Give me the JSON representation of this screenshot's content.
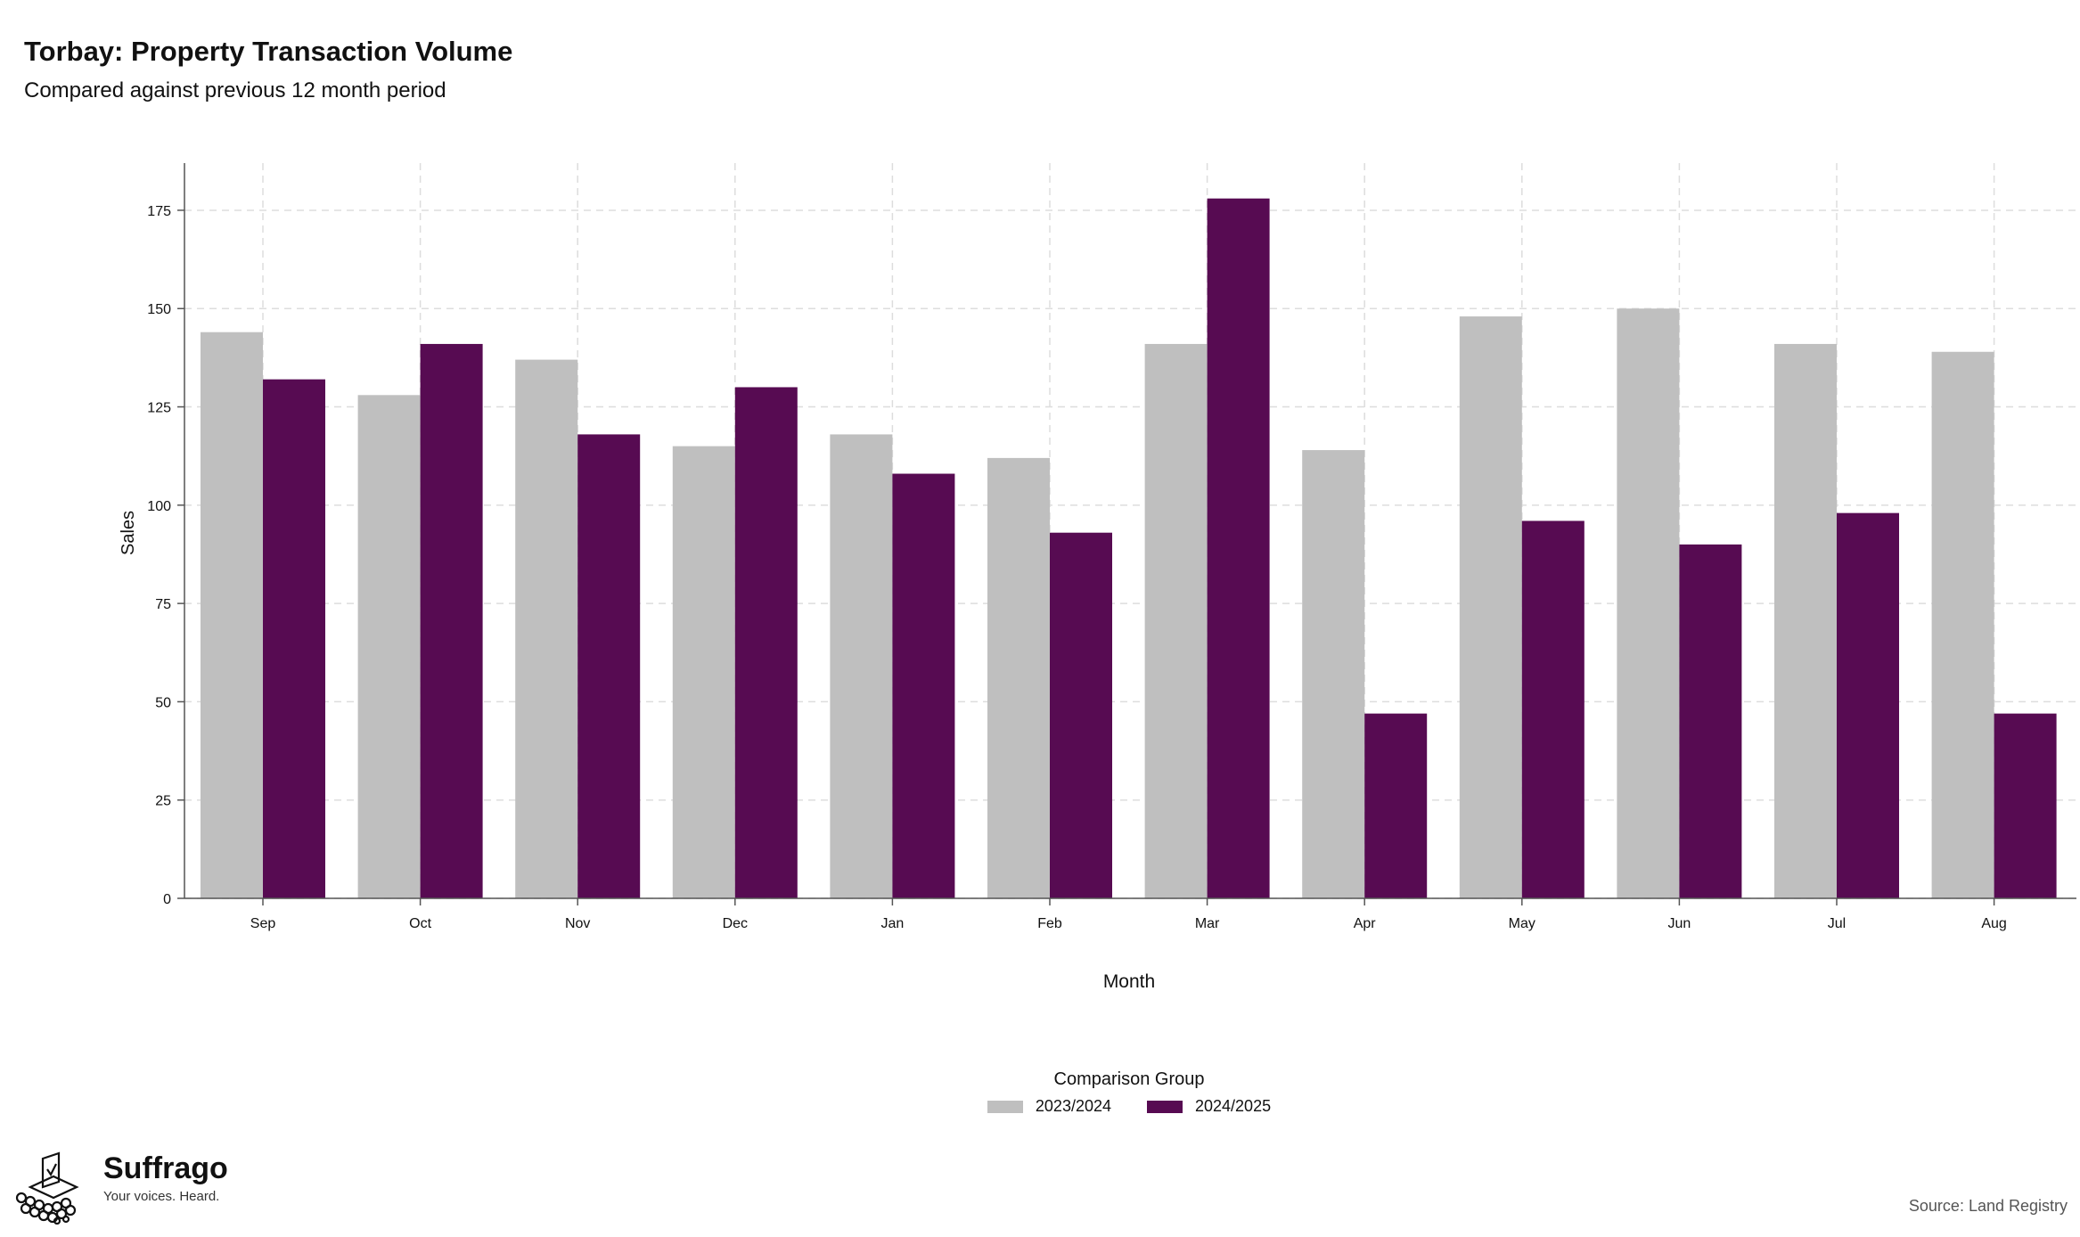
{
  "header": {
    "title": "Torbay: Property Transaction Volume",
    "subtitle": "Compared against previous 12 month period"
  },
  "chart_data": {
    "type": "bar",
    "categories": [
      "Sep",
      "Oct",
      "Nov",
      "Dec",
      "Jan",
      "Feb",
      "Mar",
      "Apr",
      "May",
      "Jun",
      "Jul",
      "Aug"
    ],
    "series": [
      {
        "name": "2023/2024",
        "color": "#bfbfbf",
        "values": [
          144,
          128,
          137,
          115,
          118,
          112,
          141,
          114,
          148,
          150,
          141,
          139
        ]
      },
      {
        "name": "2024/2025",
        "color": "#570b52",
        "values": [
          132,
          141,
          118,
          130,
          108,
          93,
          178,
          47,
          96,
          90,
          98,
          47
        ]
      }
    ],
    "xlabel": "Month",
    "ylabel": "Sales",
    "ylim": [
      0,
      187
    ],
    "yticks": [
      0,
      25,
      50,
      75,
      100,
      125,
      150,
      175
    ],
    "grid": true,
    "legend_title": "Comparison Group",
    "legend_position": "bottom"
  },
  "branding": {
    "logo_name": "Suffrago",
    "logo_tagline": "Your voices. Heard.",
    "logo_icon": "ballot-box-icon"
  },
  "footer": {
    "source": "Source: Land Registry"
  }
}
